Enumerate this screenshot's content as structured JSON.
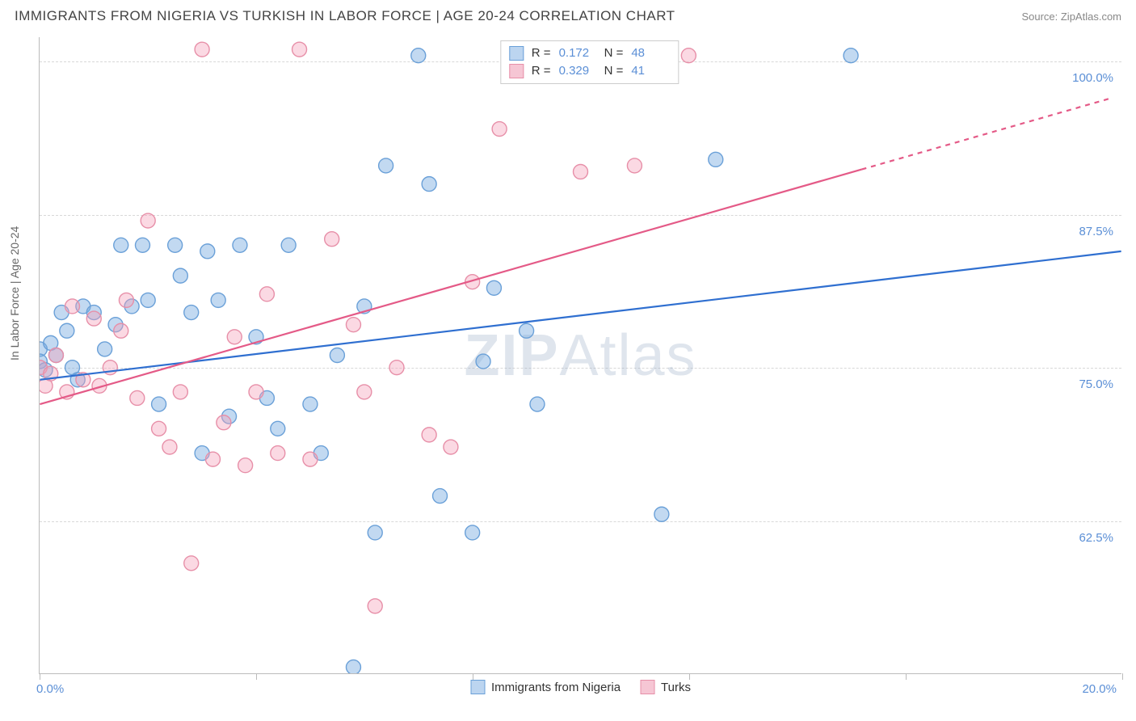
{
  "header": {
    "title": "IMMIGRANTS FROM NIGERIA VS TURKISH IN LABOR FORCE | AGE 20-24 CORRELATION CHART",
    "source_label": "Source: ZipAtlas.com"
  },
  "axis": {
    "y_title": "In Labor Force | Age 20-24",
    "xlim": [
      0,
      20
    ],
    "ylim": [
      50,
      102
    ],
    "xticks": [
      0,
      4,
      8,
      12,
      16,
      20
    ],
    "ygrid": [
      62.5,
      75.0,
      87.5,
      100.0
    ],
    "xlabel_left": "0.0%",
    "xlabel_right": "20.0%",
    "ylabels": [
      "62.5%",
      "75.0%",
      "87.5%",
      "100.0%"
    ]
  },
  "style": {
    "grid_color": "#d8d8d8",
    "axis_color": "#bbbbbb",
    "tick_label_color": "#5b8fd6",
    "background_color": "#ffffff",
    "marker_radius": 9,
    "marker_stroke_width": 1.4,
    "trend_line_width": 2.2
  },
  "series": [
    {
      "name": "Immigrants from Nigeria",
      "color_fill": "rgba(120,170,225,0.45)",
      "color_stroke": "#6aa0d8",
      "line_color": "#2f6fd0",
      "swatch_fill": "#bcd5f0",
      "swatch_border": "#6aa0d8",
      "R": "0.172",
      "N": "48",
      "trend": {
        "x1": 0,
        "y1": 74.0,
        "x2": 20,
        "y2": 84.5,
        "dash_from_x": null
      },
      "points": [
        [
          0.0,
          76.5
        ],
        [
          0.0,
          75.5
        ],
        [
          0.1,
          74.8
        ],
        [
          0.2,
          77.0
        ],
        [
          0.3,
          76.0
        ],
        [
          0.4,
          79.5
        ],
        [
          0.5,
          78.0
        ],
        [
          0.6,
          75.0
        ],
        [
          0.7,
          74.0
        ],
        [
          0.8,
          80.0
        ],
        [
          1.0,
          79.5
        ],
        [
          1.2,
          76.5
        ],
        [
          1.4,
          78.5
        ],
        [
          1.5,
          85.0
        ],
        [
          1.7,
          80.0
        ],
        [
          1.9,
          85.0
        ],
        [
          2.0,
          80.5
        ],
        [
          2.2,
          72.0
        ],
        [
          2.5,
          85.0
        ],
        [
          2.6,
          82.5
        ],
        [
          2.8,
          79.5
        ],
        [
          3.0,
          68.0
        ],
        [
          3.1,
          84.5
        ],
        [
          3.3,
          80.5
        ],
        [
          3.5,
          71.0
        ],
        [
          3.7,
          85.0
        ],
        [
          4.0,
          77.5
        ],
        [
          4.2,
          72.5
        ],
        [
          4.4,
          70.0
        ],
        [
          4.6,
          85.0
        ],
        [
          5.0,
          72.0
        ],
        [
          5.2,
          68.0
        ],
        [
          5.5,
          76.0
        ],
        [
          5.8,
          50.5
        ],
        [
          6.0,
          80.0
        ],
        [
          6.2,
          61.5
        ],
        [
          6.4,
          91.5
        ],
        [
          7.0,
          100.5
        ],
        [
          7.2,
          90.0
        ],
        [
          7.4,
          64.5
        ],
        [
          8.0,
          61.5
        ],
        [
          8.2,
          75.5
        ],
        [
          8.4,
          81.5
        ],
        [
          9.0,
          78.0
        ],
        [
          9.2,
          72.0
        ],
        [
          11.5,
          63.0
        ],
        [
          12.5,
          92.0
        ],
        [
          15.0,
          100.5
        ]
      ]
    },
    {
      "name": "Turks",
      "color_fill": "rgba(245,160,185,0.40)",
      "color_stroke": "#e78fa8",
      "line_color": "#e45a87",
      "swatch_fill": "#f6c6d4",
      "swatch_border": "#e78fa8",
      "R": "0.329",
      "N": "41",
      "trend": {
        "x1": 0,
        "y1": 72.0,
        "x2": 19.8,
        "y2": 97.0,
        "dash_from_x": 15.2
      },
      "points": [
        [
          0.0,
          75.0
        ],
        [
          0.1,
          73.5
        ],
        [
          0.2,
          74.5
        ],
        [
          0.3,
          76.0
        ],
        [
          0.5,
          73.0
        ],
        [
          0.6,
          80.0
        ],
        [
          0.8,
          74.0
        ],
        [
          1.0,
          79.0
        ],
        [
          1.1,
          73.5
        ],
        [
          1.3,
          75.0
        ],
        [
          1.5,
          78.0
        ],
        [
          1.6,
          80.5
        ],
        [
          1.8,
          72.5
        ],
        [
          2.0,
          87.0
        ],
        [
          2.2,
          70.0
        ],
        [
          2.4,
          68.5
        ],
        [
          2.6,
          73.0
        ],
        [
          2.8,
          59.0
        ],
        [
          3.0,
          101.0
        ],
        [
          3.2,
          67.5
        ],
        [
          3.4,
          70.5
        ],
        [
          3.6,
          77.5
        ],
        [
          3.8,
          67.0
        ],
        [
          4.0,
          73.0
        ],
        [
          4.2,
          81.0
        ],
        [
          4.4,
          68.0
        ],
        [
          4.8,
          101.0
        ],
        [
          5.0,
          67.5
        ],
        [
          5.4,
          85.5
        ],
        [
          5.8,
          78.5
        ],
        [
          6.0,
          73.0
        ],
        [
          6.2,
          55.5
        ],
        [
          6.6,
          75.0
        ],
        [
          7.2,
          69.5
        ],
        [
          7.6,
          68.5
        ],
        [
          8.0,
          82.0
        ],
        [
          8.5,
          94.5
        ],
        [
          10.0,
          91.0
        ],
        [
          10.5,
          100.5
        ],
        [
          11.0,
          91.5
        ],
        [
          12.0,
          100.5
        ]
      ]
    }
  ],
  "bottom_legend": {
    "items": [
      "Immigrants from Nigeria",
      "Turks"
    ]
  },
  "watermark": {
    "pre": "ZIP",
    "post": "Atlas"
  },
  "stat_labels": {
    "R": "R  =",
    "N": "N  ="
  }
}
